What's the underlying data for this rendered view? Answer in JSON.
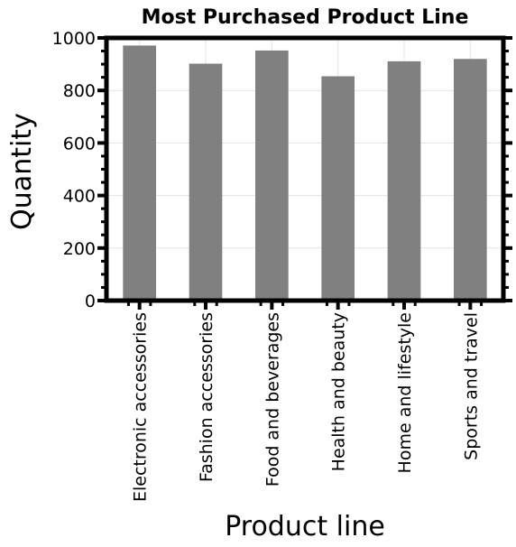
{
  "chart_data": {
    "type": "bar",
    "title": "Most Purchased Product Line",
    "xlabel": "Product line",
    "ylabel": "Quantity",
    "categories": [
      "Electronic accessories",
      "Fashion accessories",
      "Food and beverages",
      "Health and beauty",
      "Home and lifestyle",
      "Sports and travel"
    ],
    "values": [
      971,
      902,
      952,
      854,
      911,
      920
    ],
    "ylim": [
      0,
      1000
    ],
    "yticks": [
      "0",
      "200",
      "400",
      "600",
      "800",
      "1000"
    ],
    "grid": true,
    "legend": "none",
    "bar_color": "#808080"
  }
}
